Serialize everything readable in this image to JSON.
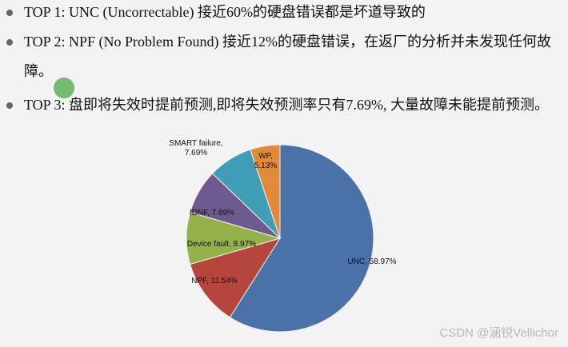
{
  "bullets": [
    "TOP 1: UNC (Uncorrectable) 接近60%的硬盘错误都是坏道导致的",
    "TOP 2: NPF (No Problem Found) 接近12%的硬盘错误，在返厂的分析并未发现任何故障。",
    "TOP 3: 盘即将失效时提前预测,即将失效预测率只有7.69%, 大量故障未能提前预测。"
  ],
  "chart_data": {
    "type": "pie",
    "categories": [
      "UNC",
      "NPF",
      "Device fault",
      "IDNF",
      "SMART failure",
      "WP"
    ],
    "values": [
      58.97,
      11.54,
      8.97,
      7.69,
      7.69,
      5.13
    ],
    "value_labels": [
      "UNC, 58.97%",
      "NPF, 11.54%",
      "Device fault, 8.97%",
      "IDNF, 7.69%",
      "SMART failure, 7.69%",
      "WP, 5.13%"
    ],
    "colors": [
      "#4a72a8",
      "#b5463d",
      "#94b14a",
      "#6e5a8e",
      "#3f9db5",
      "#e08a3a"
    ]
  },
  "watermark": "CSDN @涵锐Vellichor"
}
